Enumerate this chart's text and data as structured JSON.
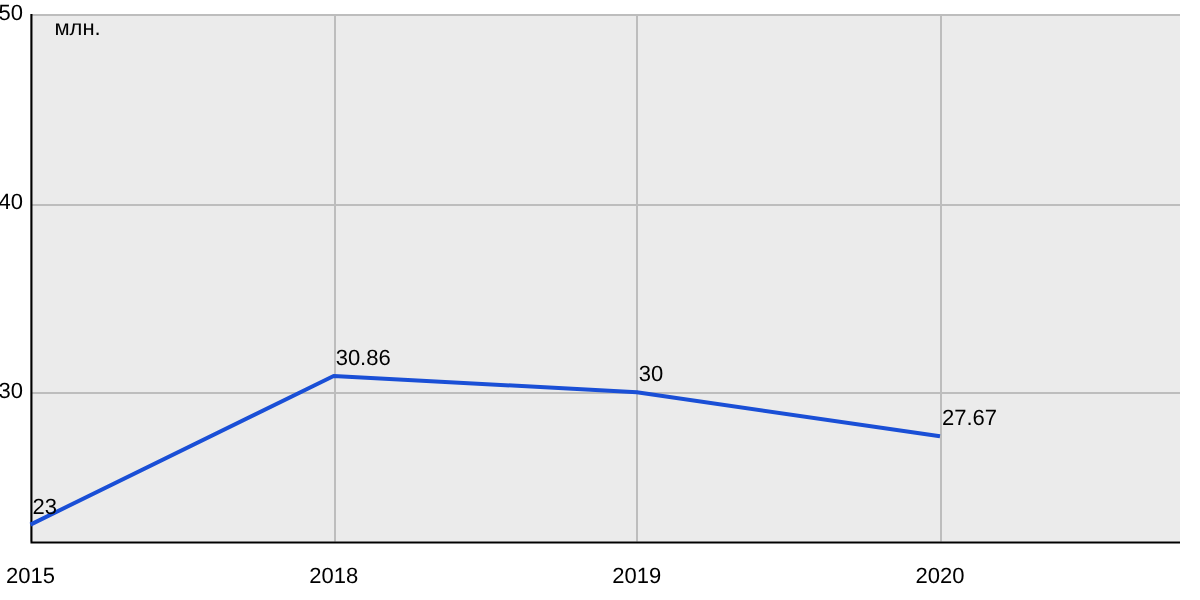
{
  "chart_data": {
    "type": "line",
    "ylabel": "млн.",
    "categories": [
      "2015",
      "2018",
      "2019",
      "2020"
    ],
    "series": [
      {
        "color": "#1a4fd6",
        "values": [
          23,
          30.86,
          30,
          27.67
        ]
      }
    ],
    "ylim": [
      22.1,
      50
    ],
    "yticks": [
      30,
      40,
      50
    ],
    "grid": true,
    "legend": false,
    "marker": "none",
    "line_style": "solid",
    "data_labels": true
  }
}
